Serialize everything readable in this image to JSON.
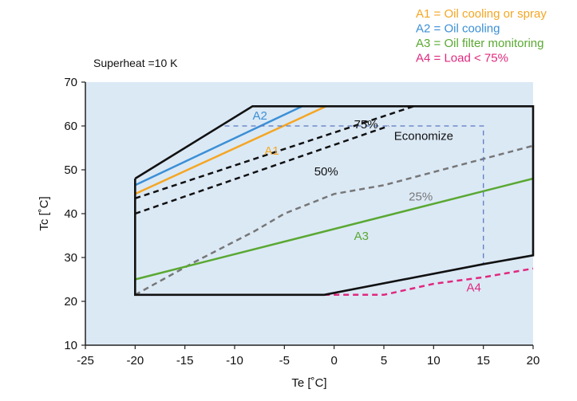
{
  "chart_data": {
    "type": "line",
    "title": "",
    "subtitle": "Superheat =10 K",
    "xlabel": "Te [˚C]",
    "ylabel": "Tc [˚C]",
    "xlim": [
      -25,
      20
    ],
    "ylim": [
      10,
      70
    ],
    "xticks": [
      -25,
      -20,
      -15,
      -10,
      -5,
      0,
      5,
      10,
      15,
      20
    ],
    "yticks": [
      10,
      20,
      30,
      40,
      50,
      60,
      70
    ],
    "grid": false,
    "background_color": "#dbe9f5",
    "legend": {
      "placement": "top-right",
      "entries": [
        {
          "text": "A1 = Oil cooling or spray",
          "color": "#f5a623"
        },
        {
          "text": "A2 = Oil cooling",
          "color": "#3b8fd6"
        },
        {
          "text": "A3 = Oil filter monitoring",
          "color": "#5aa832"
        },
        {
          "text": "A4 = Load < 75%",
          "color": "#e0287e"
        }
      ]
    },
    "envelope": {
      "name": "",
      "color": "#111111",
      "x": [
        -20,
        -8.2,
        20,
        20,
        15,
        -1,
        -20,
        -20
      ],
      "y": [
        48,
        64.5,
        64.5,
        30.5,
        28.5,
        21.5,
        21.5,
        48
      ]
    },
    "series": [
      {
        "label": "A2",
        "color": "#3b8fd6",
        "style": "solid",
        "x": [
          -20,
          -3.2
        ],
        "y": [
          46.5,
          64.5
        ],
        "label_x": -8.2,
        "label_y": 61.5
      },
      {
        "label": "A1",
        "color": "#f5a623",
        "style": "solid",
        "x": [
          -20,
          -0.8
        ],
        "y": [
          44.5,
          64.5
        ],
        "label_x": -7,
        "label_y": 53.5
      },
      {
        "label": "75%",
        "color": "#111111",
        "style": "dashed",
        "x": [
          -20,
          8
        ],
        "y": [
          43.5,
          64.5
        ],
        "label_x": 2,
        "label_y": 59.5
      },
      {
        "label": "50%",
        "color": "#111111",
        "style": "dashed",
        "x": [
          -20,
          5.5
        ],
        "y": [
          40,
          60
        ],
        "label_x": -2,
        "label_y": 48.7
      },
      {
        "label": "25%",
        "color": "#777777",
        "style": "dashed",
        "x": [
          -20,
          -14,
          -8,
          -5,
          0,
          5,
          10,
          15,
          20
        ],
        "y": [
          21.5,
          29,
          36,
          40,
          44.5,
          46.5,
          49.5,
          52.5,
          55.5
        ],
        "label_x": 7.5,
        "label_y": 43
      },
      {
        "label": "A3",
        "color": "#5aa832",
        "style": "solid",
        "x": [
          -20,
          20
        ],
        "y": [
          25,
          48
        ],
        "label_x": 2,
        "label_y": 34
      },
      {
        "label": "A4",
        "color": "#e0287e",
        "style": "dashed",
        "x": [
          -1,
          5,
          10,
          15,
          20
        ],
        "y": [
          21.5,
          21.5,
          24,
          25.5,
          27.5
        ],
        "label_x": 13.3,
        "label_y": 22.3
      }
    ],
    "economize": {
      "label": "Economize",
      "color": "#5b79c0",
      "style": "dashed",
      "x": [
        -11,
        15,
        15
      ],
      "y": [
        60,
        60,
        28.5
      ],
      "label_x": 9,
      "label_y": 56.8
    }
  }
}
